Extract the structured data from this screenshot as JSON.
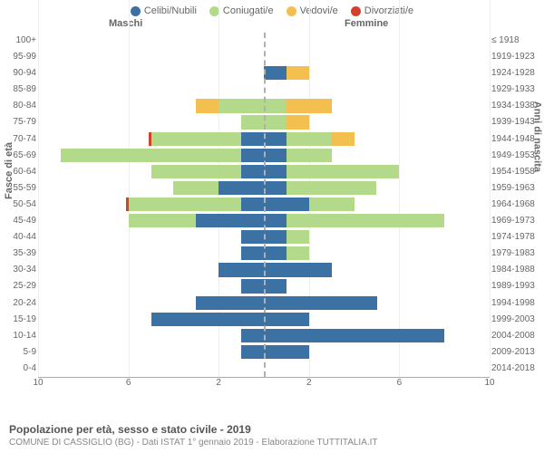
{
  "type": "population-pyramid",
  "legend": [
    {
      "label": "Celibi/Nubili",
      "color": "#3b71a3"
    },
    {
      "label": "Coniugati/e",
      "color": "#b3d98b"
    },
    {
      "label": "Vedovi/e",
      "color": "#f3c04f"
    },
    {
      "label": "Divorziati/e",
      "color": "#d64028"
    }
  ],
  "header_male": "Maschi",
  "header_female": "Femmine",
  "y_left_title": "Fasce di età",
  "y_right_title": "Anni di nascita",
  "footer_title": "Popolazione per età, sesso e stato civile - 2019",
  "footer_sub": "COMUNE DI CASSIGLIO (BG) - Dati ISTAT 1° gennaio 2019 - Elaborazione TUTTITALIA.IT",
  "x_max": 10,
  "x_ticks_left": [
    10,
    6,
    2
  ],
  "x_ticks_right": [
    2,
    6,
    10
  ],
  "background_color": "#ffffff",
  "grid_color": "#eeeeee",
  "axis_color": "#aaaaaa",
  "center_line_color": "#b0b0b0",
  "label_fontsize": 10,
  "rows": [
    {
      "age": "100+",
      "birth": "≤ 1918",
      "m": [
        0,
        0,
        0,
        0
      ],
      "f": [
        0,
        0,
        0,
        0
      ]
    },
    {
      "age": "95-99",
      "birth": "1919-1923",
      "m": [
        0,
        0,
        0,
        0
      ],
      "f": [
        0,
        0,
        0,
        0
      ]
    },
    {
      "age": "90-94",
      "birth": "1924-1928",
      "m": [
        0,
        0,
        0,
        0
      ],
      "f": [
        1,
        0,
        1,
        0
      ]
    },
    {
      "age": "85-89",
      "birth": "1929-1933",
      "m": [
        0,
        0,
        0,
        0
      ],
      "f": [
        0,
        0,
        0,
        0
      ]
    },
    {
      "age": "80-84",
      "birth": "1934-1938",
      "m": [
        0,
        2,
        1,
        0
      ],
      "f": [
        0,
        1,
        2,
        0
      ]
    },
    {
      "age": "75-79",
      "birth": "1939-1943",
      "m": [
        0,
        1,
        0,
        0
      ],
      "f": [
        0,
        1,
        1,
        0
      ]
    },
    {
      "age": "70-74",
      "birth": "1944-1948",
      "m": [
        1,
        4,
        0,
        0.1
      ],
      "f": [
        1,
        2,
        1,
        0
      ]
    },
    {
      "age": "65-69",
      "birth": "1949-1953",
      "m": [
        1,
        8,
        0,
        0
      ],
      "f": [
        1,
        2,
        0,
        0
      ]
    },
    {
      "age": "60-64",
      "birth": "1954-1958",
      "m": [
        1,
        4,
        0,
        0
      ],
      "f": [
        1,
        5,
        0,
        0
      ]
    },
    {
      "age": "55-59",
      "birth": "1959-1963",
      "m": [
        2,
        2,
        0,
        0
      ],
      "f": [
        1,
        4,
        0,
        0
      ]
    },
    {
      "age": "50-54",
      "birth": "1964-1968",
      "m": [
        1,
        5,
        0,
        0.1
      ],
      "f": [
        2,
        2,
        0,
        0
      ]
    },
    {
      "age": "45-49",
      "birth": "1969-1973",
      "m": [
        3,
        3,
        0,
        0
      ],
      "f": [
        1,
        7,
        0,
        0
      ]
    },
    {
      "age": "40-44",
      "birth": "1974-1978",
      "m": [
        1,
        0,
        0,
        0
      ],
      "f": [
        1,
        1,
        0,
        0
      ]
    },
    {
      "age": "35-39",
      "birth": "1979-1983",
      "m": [
        1,
        0,
        0,
        0
      ],
      "f": [
        1,
        1,
        0,
        0
      ]
    },
    {
      "age": "30-34",
      "birth": "1984-1988",
      "m": [
        2,
        0,
        0,
        0
      ],
      "f": [
        3,
        0,
        0,
        0
      ]
    },
    {
      "age": "25-29",
      "birth": "1989-1993",
      "m": [
        1,
        0,
        0,
        0
      ],
      "f": [
        1,
        0,
        0,
        0
      ]
    },
    {
      "age": "20-24",
      "birth": "1994-1998",
      "m": [
        3,
        0,
        0,
        0
      ],
      "f": [
        5,
        0,
        0,
        0
      ]
    },
    {
      "age": "15-19",
      "birth": "1999-2003",
      "m": [
        5,
        0,
        0,
        0
      ],
      "f": [
        2,
        0,
        0,
        0
      ]
    },
    {
      "age": "10-14",
      "birth": "2004-2008",
      "m": [
        1,
        0,
        0,
        0
      ],
      "f": [
        8,
        0,
        0,
        0
      ]
    },
    {
      "age": "5-9",
      "birth": "2009-2013",
      "m": [
        1,
        0,
        0,
        0
      ],
      "f": [
        2,
        0,
        0,
        0
      ]
    },
    {
      "age": "0-4",
      "birth": "2014-2018",
      "m": [
        0,
        0,
        0,
        0
      ],
      "f": [
        0,
        0,
        0,
        0
      ]
    }
  ]
}
